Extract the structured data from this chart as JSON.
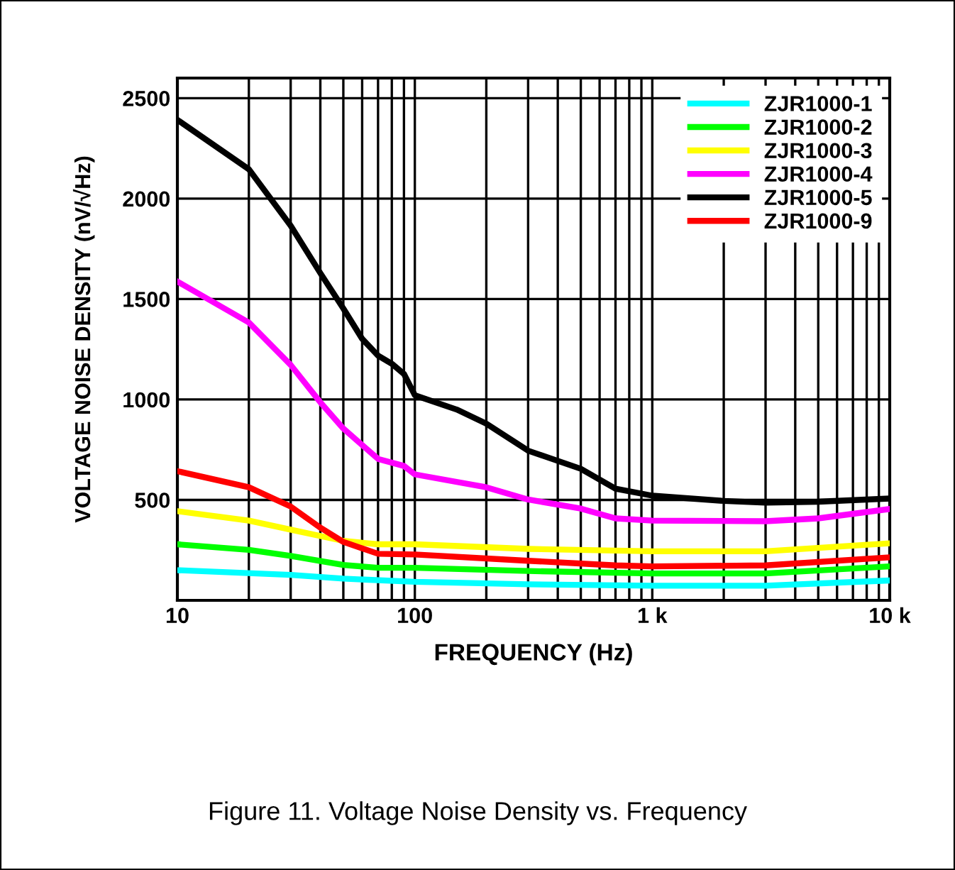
{
  "chart_data": {
    "type": "line",
    "xlabel": "FREQUENCY (Hz)",
    "ylabel": "VOLTAGE NOISE DENSITY (nV/√Hz)",
    "log": "x",
    "grid": true,
    "legend": "top right",
    "line_style": "solid",
    "marker": "none",
    "xlim": [
      10,
      10000
    ],
    "xticks": [
      10,
      100,
      {
        "value": 1000,
        "label": "1 k"
      },
      {
        "value": 10000,
        "label": "10 k"
      }
    ],
    "ylim": [
      0,
      2600
    ],
    "yticks": [
      500,
      1000,
      1500,
      2000,
      2500
    ],
    "annotations": [
      "Figure 11. Voltage Noise Density vs. Frequency"
    ],
    "series": [
      {
        "name": "ZJR1000-1",
        "color": "#00ffff",
        "x": [
          10,
          30,
          50,
          100,
          300,
          1000,
          3000,
          10000
        ],
        "values": [
          150,
          127,
          108,
          92,
          80,
          73,
          73,
          99
        ]
      },
      {
        "name": "ZJR1000-2",
        "color": "#00ff00",
        "x": [
          10,
          20,
          30,
          50,
          70,
          100,
          300,
          1000,
          3000,
          10000
        ],
        "values": [
          279,
          251,
          221,
          176,
          162,
          162,
          146,
          134,
          134,
          169
        ]
      },
      {
        "name": "ZJR1000-3",
        "color": "#ffff00",
        "x": [
          10,
          20,
          30,
          50,
          70,
          100,
          300,
          1000,
          3000,
          10000
        ],
        "values": [
          444,
          397,
          352,
          296,
          279,
          279,
          256,
          244,
          244,
          284
        ]
      },
      {
        "name": "ZJR1000-4",
        "color": "#ff00ff",
        "x": [
          10,
          20,
          30,
          40,
          50,
          70,
          90,
          100,
          200,
          300,
          500,
          700,
          1000,
          3000,
          5000,
          10000
        ],
        "values": [
          1587,
          1383,
          1172,
          986,
          855,
          704,
          669,
          627,
          563,
          502,
          457,
          408,
          397,
          394,
          408,
          455
        ]
      },
      {
        "name": "ZJR1000-5",
        "color": "#000000",
        "x": [
          10,
          20,
          30,
          40,
          50,
          60,
          70,
          80,
          90,
          100,
          150,
          200,
          300,
          500,
          700,
          1000,
          2000,
          3000,
          5000,
          10000
        ],
        "values": [
          2392,
          2146,
          1865,
          1629,
          1453,
          1302,
          1218,
          1178,
          1127,
          1021,
          950,
          880,
          745,
          655,
          556,
          521,
          495,
          486,
          491,
          507
        ]
      },
      {
        "name": "ZJR1000-9",
        "color": "#ff0000",
        "x": [
          10,
          20,
          30,
          40,
          50,
          70,
          100,
          300,
          700,
          1000,
          3000,
          10000
        ],
        "values": [
          643,
          563,
          467,
          362,
          291,
          232,
          228,
          197,
          174,
          169,
          174,
          214
        ]
      }
    ]
  }
}
